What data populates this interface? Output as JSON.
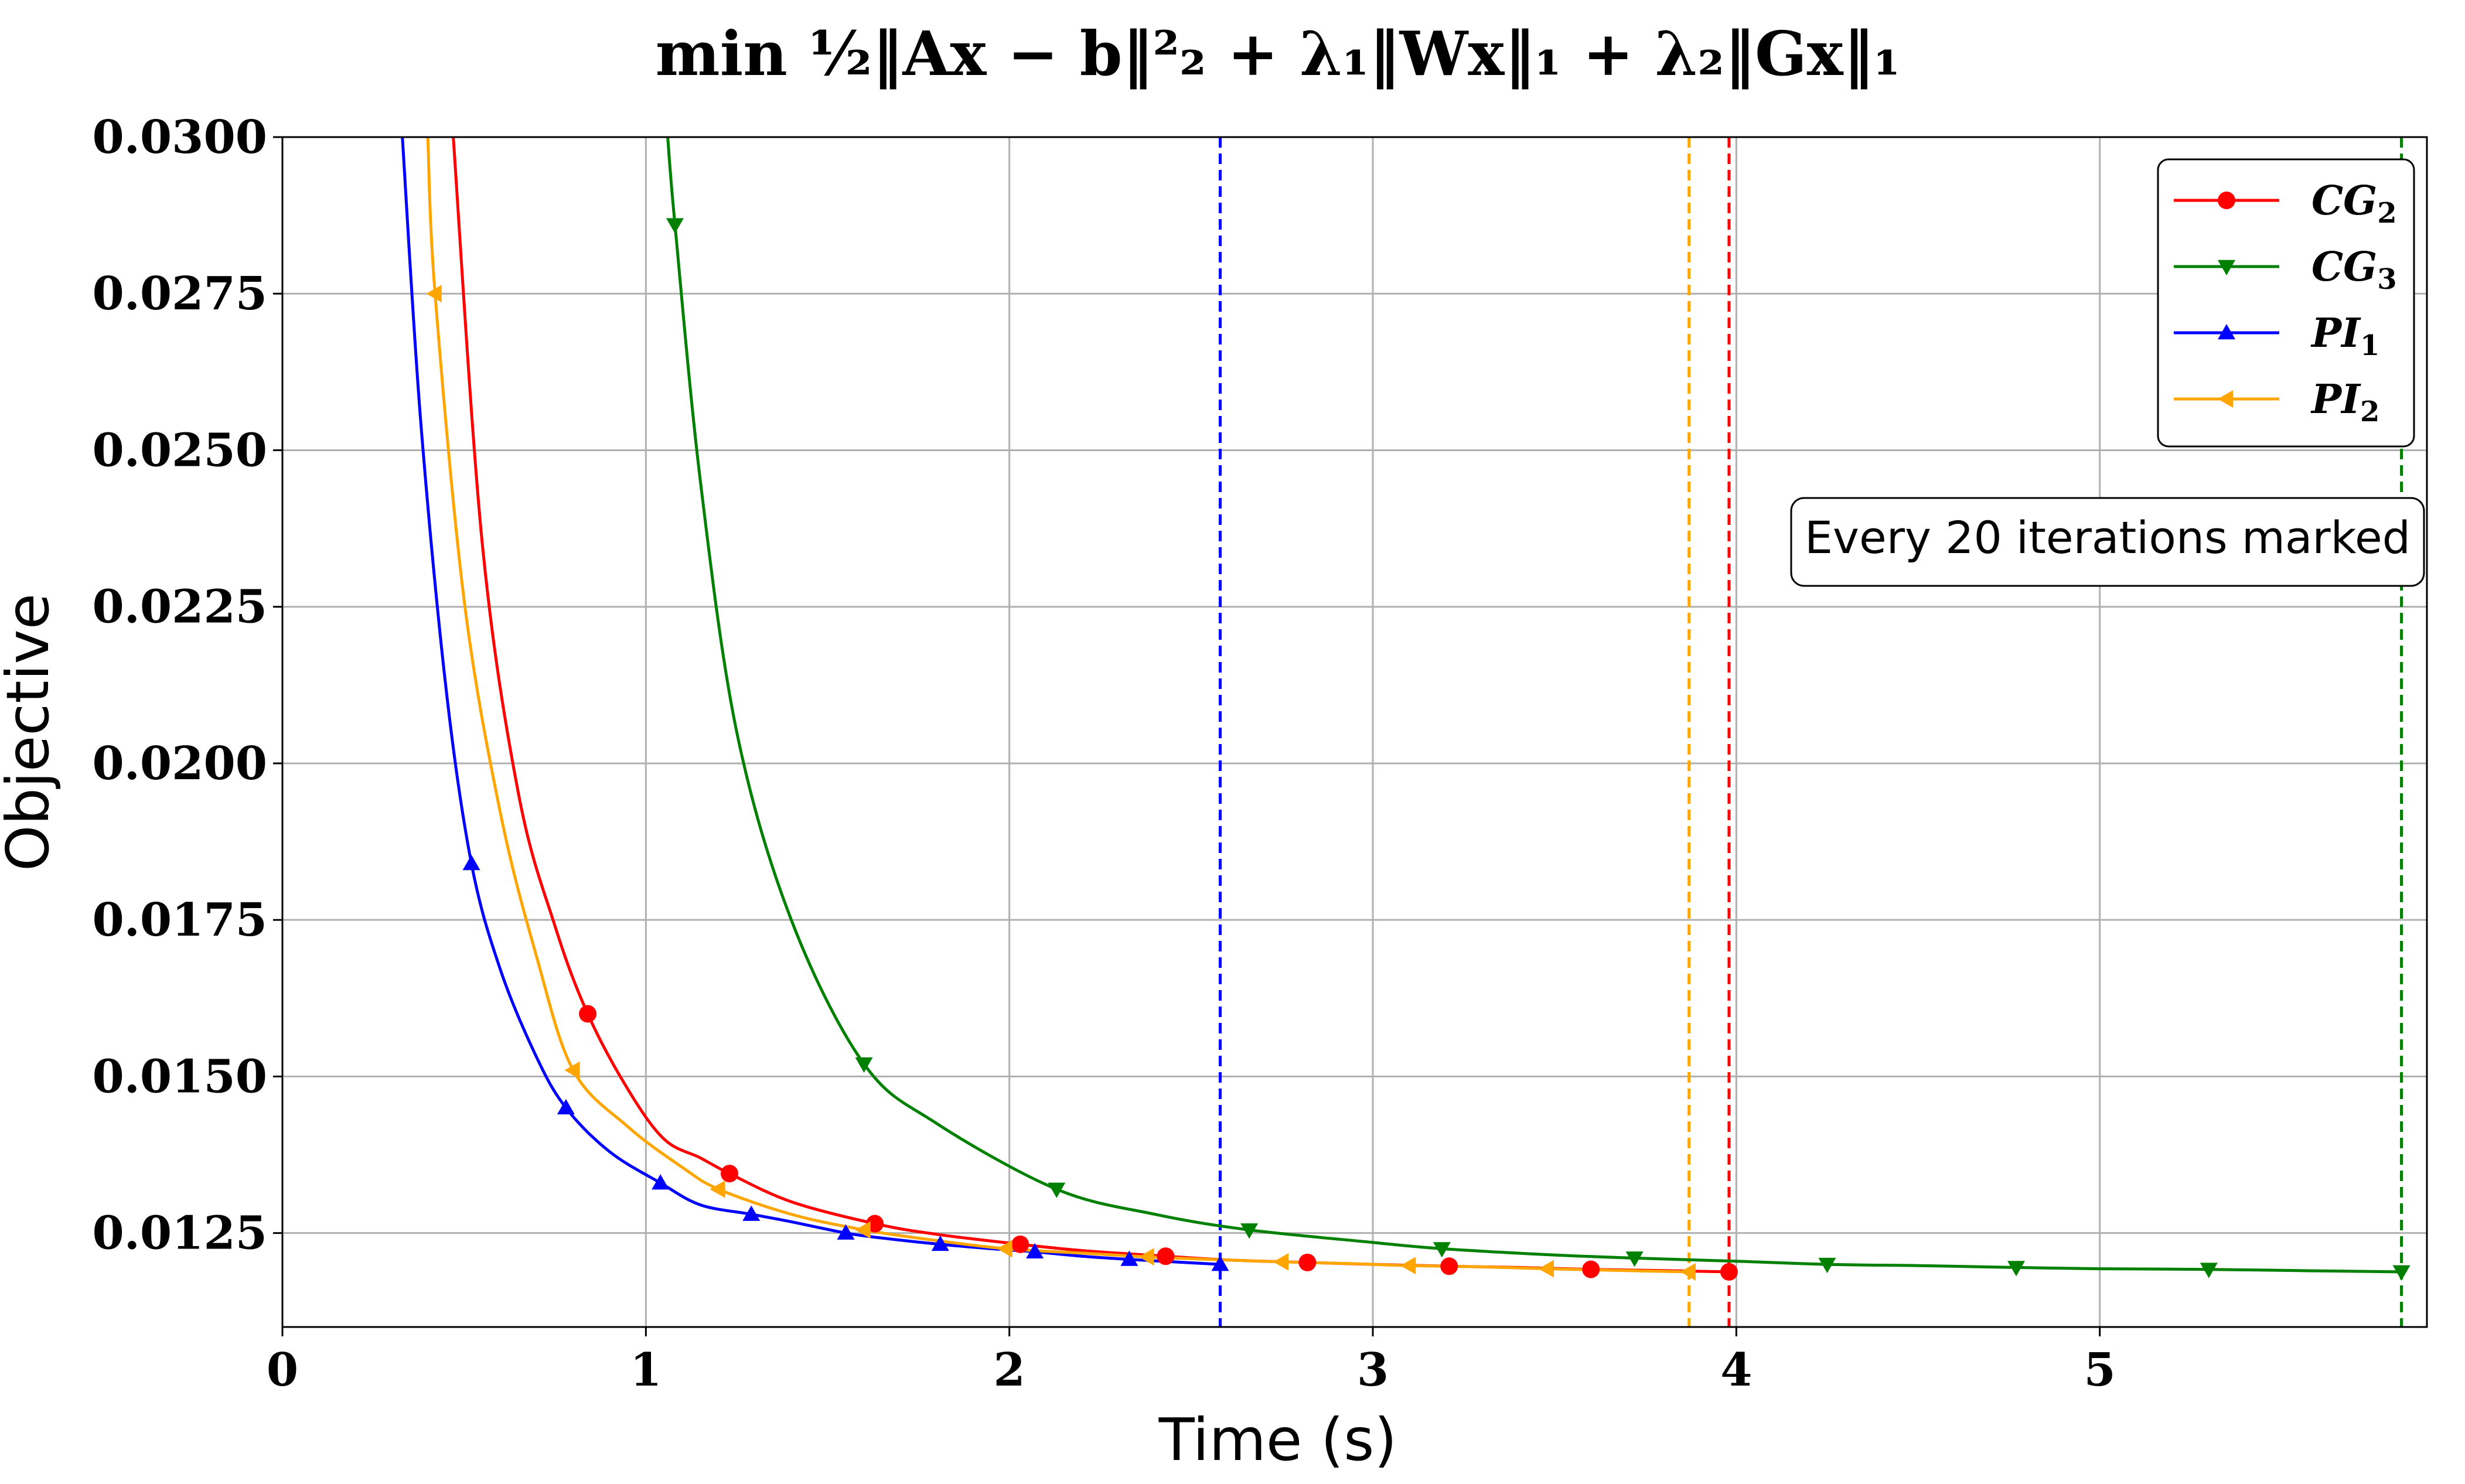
{
  "chart_data": {
    "type": "line",
    "title": "min ½‖Ax − b‖²₂ + λ₁‖Wx‖₁ + λ₂‖Gx‖₁",
    "xlabel": "Time (s)",
    "ylabel": "Objective",
    "xlim": [
      0,
      5.9
    ],
    "ylim": [
      0.011,
      0.03
    ],
    "xticks": [
      0,
      1,
      2,
      3,
      4,
      5
    ],
    "xtick_labels": [
      "0",
      "1",
      "2",
      "3",
      "4",
      "5"
    ],
    "yticks": [
      0.0125,
      0.015,
      0.0175,
      0.02,
      0.0225,
      0.025,
      0.0275,
      0.03
    ],
    "ytick_labels": [
      "0.0125",
      "0.0150",
      "0.0175",
      "0.0200",
      "0.0225",
      "0.0250",
      "0.0275",
      "0.0300"
    ],
    "grid": true,
    "legend_position": "top-right",
    "annotation": "Every 20 iterations marked",
    "series": [
      {
        "name": "CG",
        "subscript": "2",
        "color": "#ff0000",
        "marker": "circle",
        "end_time": 3.98,
        "x": [
          0.47,
          0.55,
          0.65,
          0.75,
          0.84,
          0.95,
          1.05,
          1.15,
          1.23,
          1.4,
          1.63,
          1.8,
          2.03,
          2.2,
          2.43,
          2.6,
          2.82,
          3.0,
          3.21,
          3.4,
          3.6,
          3.8,
          3.98
        ],
        "y": [
          0.03,
          0.0235,
          0.0195,
          0.0174,
          0.016,
          0.0148,
          0.014,
          0.0137,
          0.01345,
          0.013,
          0.01265,
          0.01248,
          0.01232,
          0.01222,
          0.01213,
          0.01207,
          0.01203,
          0.012,
          0.01197,
          0.01195,
          0.01192,
          0.0119,
          0.01188
        ],
        "marker_x": [
          0.84,
          1.23,
          1.63,
          2.03,
          2.43,
          2.82,
          3.21,
          3.6,
          3.98
        ],
        "marker_y": [
          0.016,
          0.01345,
          0.01265,
          0.01232,
          0.01213,
          0.01203,
          0.01197,
          0.01192,
          0.01188
        ]
      },
      {
        "name": "CG",
        "subscript": "3",
        "color": "#008000",
        "marker": "triangle-down",
        "end_time": 5.83,
        "x": [
          1.06,
          1.08,
          1.15,
          1.25,
          1.4,
          1.6,
          1.8,
          2.13,
          2.4,
          2.66,
          3.0,
          3.19,
          3.5,
          3.72,
          4.0,
          4.25,
          4.5,
          4.77,
          5.0,
          5.3,
          5.55,
          5.83
        ],
        "y": [
          0.03,
          0.0286,
          0.0245,
          0.0205,
          0.0175,
          0.0152,
          0.01425,
          0.0132,
          0.0128,
          0.01255,
          0.01235,
          0.01225,
          0.01215,
          0.0121,
          0.01205,
          0.012,
          0.01198,
          0.01195,
          0.01193,
          0.01192,
          0.0119,
          0.01188
        ],
        "marker_x": [
          1.08,
          1.6,
          2.13,
          2.66,
          3.19,
          3.72,
          4.25,
          4.77,
          5.3,
          5.83
        ],
        "marker_y": [
          0.0286,
          0.0152,
          0.0132,
          0.01255,
          0.01225,
          0.0121,
          0.012,
          0.01195,
          0.01192,
          0.01188
        ]
      },
      {
        "name": "PI",
        "subscript": "1",
        "color": "#0000ff",
        "marker": "triangle-up",
        "end_time": 2.58,
        "x": [
          0.33,
          0.38,
          0.45,
          0.52,
          0.6,
          0.7,
          0.78,
          0.9,
          1.04,
          1.15,
          1.29,
          1.4,
          1.55,
          1.65,
          1.81,
          1.95,
          2.07,
          2.2,
          2.33,
          2.45,
          2.58
        ],
        "y": [
          0.03,
          0.0255,
          0.0212,
          0.0184,
          0.0167,
          0.0153,
          0.0145,
          0.0138,
          0.0133,
          0.01295,
          0.0128,
          0.01268,
          0.0125,
          0.01242,
          0.01232,
          0.01225,
          0.0122,
          0.01213,
          0.01208,
          0.01204,
          0.012
        ],
        "marker_x": [
          0.52,
          0.78,
          1.04,
          1.29,
          1.55,
          1.81,
          2.07,
          2.33,
          2.58
        ],
        "marker_y": [
          0.0184,
          0.0145,
          0.0133,
          0.0128,
          0.0125,
          0.01232,
          0.0122,
          0.01208,
          0.012
        ]
      },
      {
        "name": "PI",
        "subscript": "2",
        "color": "#ffa500",
        "marker": "triangle-left",
        "end_time": 3.87,
        "x": [
          0.4,
          0.42,
          0.5,
          0.6,
          0.7,
          0.8,
          0.95,
          1.1,
          1.2,
          1.4,
          1.6,
          1.8,
          1.99,
          2.2,
          2.38,
          2.55,
          2.75,
          2.95,
          3.1,
          3.3,
          3.48,
          3.7,
          3.87
        ],
        "y": [
          0.03,
          0.0275,
          0.0226,
          0.0192,
          0.0169,
          0.0151,
          0.0142,
          0.01355,
          0.0132,
          0.0128,
          0.01255,
          0.01238,
          0.01225,
          0.01218,
          0.01212,
          0.01208,
          0.01204,
          0.01201,
          0.01198,
          0.01196,
          0.01193,
          0.0119,
          0.01188
        ],
        "marker_x": [
          0.42,
          0.8,
          1.2,
          1.6,
          1.99,
          2.38,
          2.75,
          3.1,
          3.48,
          3.87
        ],
        "marker_y": [
          0.0275,
          0.0151,
          0.0132,
          0.01255,
          0.01225,
          0.01212,
          0.01204,
          0.01198,
          0.01193,
          0.01188
        ]
      }
    ]
  }
}
